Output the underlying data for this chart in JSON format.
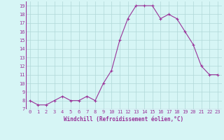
{
  "x": [
    0,
    1,
    2,
    3,
    4,
    5,
    6,
    7,
    8,
    9,
    10,
    11,
    12,
    13,
    14,
    15,
    16,
    17,
    18,
    19,
    20,
    21,
    22,
    23
  ],
  "y": [
    8,
    7.5,
    7.5,
    8,
    8.5,
    8,
    8,
    8.5,
    8,
    10,
    11.5,
    15,
    17.5,
    19,
    19,
    19,
    17.5,
    18,
    17.5,
    16,
    14.5,
    12,
    11,
    11
  ],
  "line_color": "#993399",
  "marker": "+",
  "background_color": "#d6f5f5",
  "grid_color": "#b0d8d8",
  "xlabel": "Windchill (Refroidissement éolien,°C)",
  "xlabel_color": "#993399",
  "tick_color": "#993399",
  "ylim": [
    7,
    19.5
  ],
  "xlim": [
    -0.5,
    23.5
  ],
  "yticks": [
    7,
    8,
    9,
    10,
    11,
    12,
    13,
    14,
    15,
    16,
    17,
    18,
    19
  ],
  "xticks": [
    0,
    1,
    2,
    3,
    4,
    5,
    6,
    7,
    8,
    9,
    10,
    11,
    12,
    13,
    14,
    15,
    16,
    17,
    18,
    19,
    20,
    21,
    22,
    23
  ]
}
